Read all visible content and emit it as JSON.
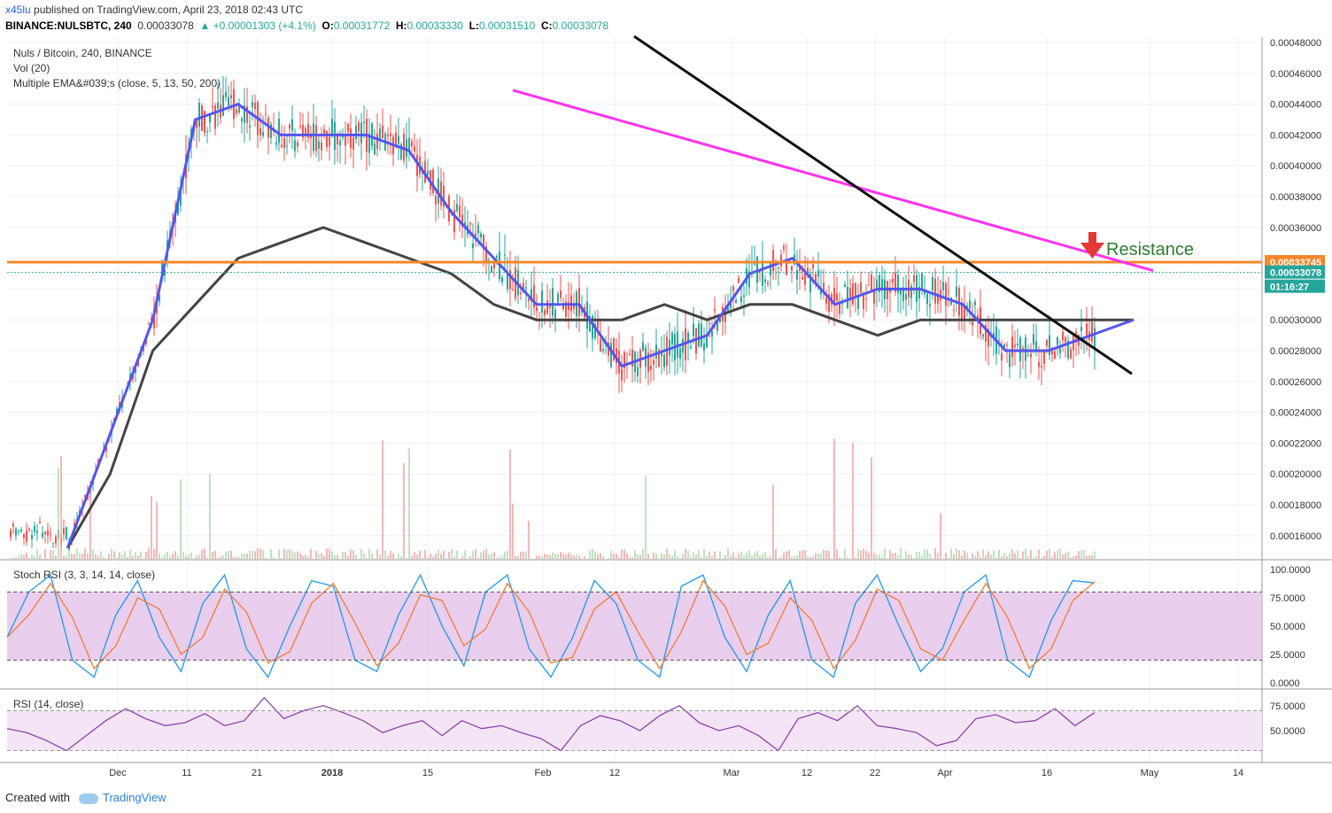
{
  "header": {
    "author": "x45lu",
    "published": "published on TradingView.com, April 23, 2018 02:43 UTC",
    "symbol": "BINANCE:NULSBTC, 240",
    "last": "0.00033078",
    "change": "▲ +0.00001303 (+4.1%)",
    "open_label": "O:",
    "open": "0.00031772",
    "high_label": "H:",
    "high": "0.00033330",
    "low_label": "L:",
    "low": "0.00031510",
    "close_label": "C:",
    "close": "0.00033078"
  },
  "legend": {
    "pair": "Nuls / Bitcoin, 240, BINANCE",
    "vol": "Vol (20)",
    "ema": "Multiple EMA&#039;s (close, 5, 13, 50, 200)",
    "stoch": "Stoch RSI (3, 3, 14, 14, close)",
    "rsi": "RSI (14, close)"
  },
  "annotation": {
    "text": "Resistance"
  },
  "price_tags": {
    "resistance": "0.00033745",
    "last": "0.00033078",
    "countdown": "01:16:27"
  },
  "footer": {
    "created": "Created with",
    "brand": "TradingView"
  },
  "colors": {
    "up": "#26a69a",
    "down": "#ef5350",
    "resistance": "#f5882a",
    "magenta": "#ff33ee",
    "ema_fast": "#5555ee",
    "ema_slow": "#444444",
    "stoch_k": "#2196f3",
    "stoch_d": "#f57c35",
    "rsi": "#8e44ad",
    "band": "#e1bee7"
  },
  "chart_data": [
    {
      "type": "candlestick",
      "title": "Nuls / Bitcoin, 240, BINANCE",
      "x_ticks": [
        "Dec",
        "11",
        "21",
        "2018",
        "15",
        "Feb",
        "12",
        "Mar",
        "12",
        "22",
        "Apr",
        "16",
        "May",
        "14"
      ],
      "y_ticks": [
        "0.00016000",
        "0.00018000",
        "0.00020000",
        "0.00022000",
        "0.00024000",
        "0.00026000",
        "0.00028000",
        "0.00030000",
        "0.00032000",
        "0.00034000",
        "0.00036000",
        "0.00038000",
        "0.00040000",
        "0.00042000",
        "0.00044000",
        "0.00046000",
        "0.00048000"
      ],
      "ylim": [
        0.000151,
        0.000484
      ],
      "resistance_level": 0.00033745,
      "last_price": 0.00033078,
      "ema_fast": [
        [
          1,
          0.000152
        ],
        [
          3,
          0.0003
        ],
        [
          4,
          0.00043
        ],
        [
          5,
          0.00044
        ],
        [
          6,
          0.00042
        ],
        [
          8,
          0.00042
        ],
        [
          9,
          0.00041
        ],
        [
          10,
          0.00037
        ],
        [
          11,
          0.00034
        ],
        [
          12,
          0.00031
        ],
        [
          13,
          0.00031
        ],
        [
          14,
          0.00027
        ],
        [
          15,
          0.00028
        ],
        [
          16,
          0.00029
        ],
        [
          17,
          0.00033
        ],
        [
          18,
          0.00034
        ],
        [
          19,
          0.00031
        ],
        [
          20,
          0.00032
        ],
        [
          21,
          0.00032
        ],
        [
          22,
          0.00031
        ],
        [
          23,
          0.00028
        ],
        [
          24,
          0.00028
        ],
        [
          25,
          0.00029
        ],
        [
          26,
          0.0003
        ]
      ],
      "ema_slow": [
        [
          1,
          0.000152
        ],
        [
          2,
          0.0002
        ],
        [
          3,
          0.00028
        ],
        [
          4,
          0.00031
        ],
        [
          5,
          0.00034
        ],
        [
          6,
          0.00035
        ],
        [
          7,
          0.00036
        ],
        [
          8,
          0.00035
        ],
        [
          9,
          0.00034
        ],
        [
          10,
          0.00033
        ],
        [
          11,
          0.00031
        ],
        [
          12,
          0.0003
        ],
        [
          13,
          0.0003
        ],
        [
          14,
          0.0003
        ],
        [
          15,
          0.00031
        ],
        [
          16,
          0.0003
        ],
        [
          17,
          0.00031
        ],
        [
          18,
          0.00031
        ],
        [
          19,
          0.0003
        ],
        [
          20,
          0.00029
        ],
        [
          21,
          0.0003
        ],
        [
          22,
          0.0003
        ],
        [
          23,
          0.0003
        ],
        [
          24,
          0.0003
        ],
        [
          25,
          0.0003
        ],
        [
          26,
          0.0003
        ]
      ],
      "trendline_magenta": [
        [
          0.000449
        ],
        [
          0.000332
        ]
      ],
      "trendline_black": [
        [
          0.000484
        ],
        [
          0.000265
        ]
      ]
    },
    {
      "type": "line",
      "title": "Stoch RSI (3, 3, 14, 14, close)",
      "y_ticks": [
        "0.0000",
        "25.0000",
        "50.0000",
        "75.0000",
        "100.0000"
      ],
      "ylim": [
        0,
        100
      ],
      "bands": [
        20,
        80
      ],
      "k": [
        40,
        80,
        95,
        20,
        5,
        60,
        90,
        40,
        10,
        70,
        95,
        30,
        5,
        50,
        90,
        85,
        20,
        10,
        60,
        95,
        50,
        15,
        80,
        95,
        30,
        5,
        40,
        90,
        70,
        20,
        5,
        85,
        95,
        40,
        10,
        60,
        90,
        20,
        5,
        70,
        95,
        50,
        10,
        30,
        80,
        95,
        20,
        5,
        55,
        90,
        88
      ]
    },
    {
      "type": "line",
      "title": "RSI (14, close)",
      "y_ticks": [
        "50.0000",
        "75.0000"
      ],
      "ylim": [
        22,
        86
      ],
      "bands": [
        30,
        70
      ],
      "values": [
        52,
        48,
        40,
        30,
        45,
        60,
        72,
        62,
        55,
        58,
        67,
        55,
        60,
        83,
        62,
        70,
        75,
        68,
        60,
        48,
        55,
        60,
        45,
        60,
        52,
        55,
        48,
        42,
        30,
        55,
        65,
        60,
        50,
        65,
        75,
        58,
        50,
        55,
        45,
        30,
        62,
        68,
        60,
        75,
        55,
        52,
        48,
        35,
        40,
        62,
        66,
        58,
        60,
        72,
        55,
        68
      ]
    }
  ]
}
